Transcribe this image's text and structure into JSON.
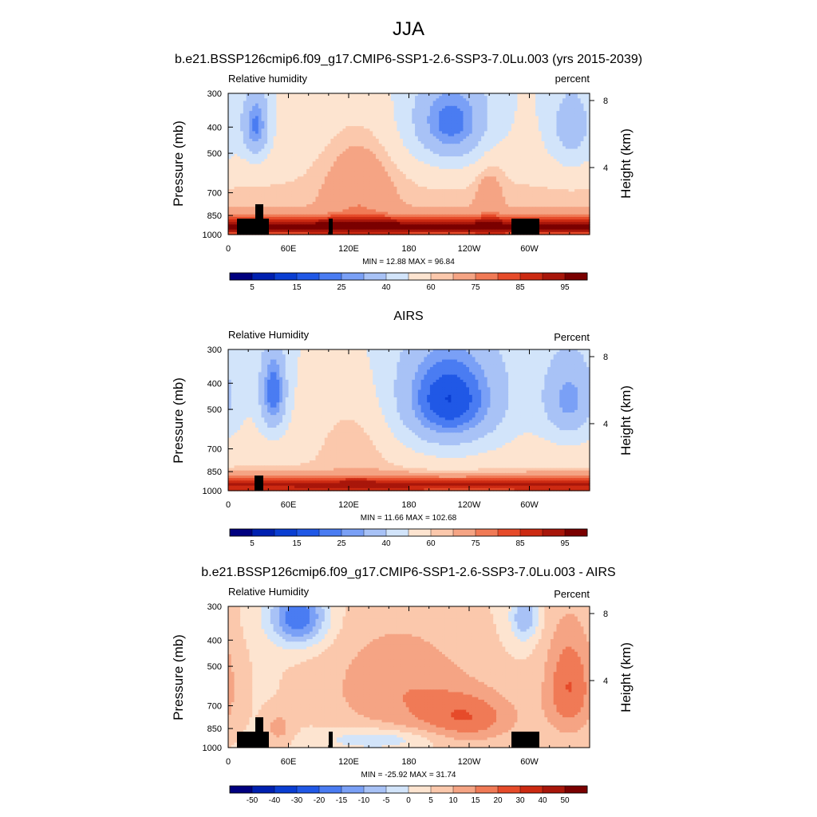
{
  "figure": {
    "title": "JJA"
  },
  "chart_data": [
    {
      "type": "heatmap",
      "title": "b.e21.BSSP126cmip6.f09_g17.CMIP6-SSP1-2.6-SSP3-7.0Lu.003 (yrs 2015-2039)",
      "left_label": "Relative humidity",
      "right_label": "percent",
      "ylabel": "Pressure (mb)",
      "ylabel_right": "Height (km)",
      "x_ticks": [
        "0",
        "60E",
        "120E",
        "180",
        "120W",
        "60W"
      ],
      "x_tick_values": [
        0,
        60,
        120,
        180,
        240,
        300
      ],
      "xlim": [
        0,
        360
      ],
      "y_ticks": [
        "300",
        "400",
        "500",
        "700",
        "850",
        "1000"
      ],
      "y_tick_values": [
        300,
        400,
        500,
        700,
        850,
        1000
      ],
      "ylim": [
        1000,
        300
      ],
      "height_ticks": [
        "8",
        "4"
      ],
      "height_tick_values": [
        8,
        4
      ],
      "stats": "MIN = 12.88  MAX = 96.84",
      "min": 12.88,
      "max": 96.84,
      "colorbar_labels": [
        "5",
        "15",
        "25",
        "40",
        "60",
        "75",
        "85",
        "95"
      ],
      "levels": [
        5,
        10,
        15,
        20,
        25,
        30,
        40,
        50,
        60,
        65,
        75,
        80,
        85,
        90,
        95
      ],
      "palette": "rh",
      "field": "model",
      "terrain": "full"
    },
    {
      "type": "heatmap",
      "title": "AIRS",
      "left_label": "Relative Humidity",
      "right_label": "Percent",
      "ylabel": "Pressure (mb)",
      "ylabel_right": "Height (km)",
      "x_ticks": [
        "0",
        "60E",
        "120E",
        "180",
        "120W",
        "60W"
      ],
      "x_tick_values": [
        0,
        60,
        120,
        180,
        240,
        300
      ],
      "xlim": [
        0,
        360
      ],
      "y_ticks": [
        "300",
        "400",
        "500",
        "700",
        "850",
        "1000"
      ],
      "y_tick_values": [
        300,
        400,
        500,
        700,
        850,
        1000
      ],
      "ylim": [
        1000,
        300
      ],
      "height_ticks": [
        "8",
        "4"
      ],
      "height_tick_values": [
        8,
        4
      ],
      "stats": "MIN = 11.66  MAX = 102.68",
      "min": 11.66,
      "max": 102.68,
      "colorbar_labels": [
        "5",
        "15",
        "25",
        "40",
        "60",
        "75",
        "85",
        "95"
      ],
      "levels": [
        5,
        10,
        15,
        20,
        25,
        30,
        40,
        50,
        60,
        65,
        75,
        80,
        85,
        90,
        95
      ],
      "palette": "rh",
      "field": "obs",
      "terrain": "small"
    },
    {
      "type": "heatmap",
      "title": "b.e21.BSSP126cmip6.f09_g17.CMIP6-SSP1-2.6-SSP3-7.0Lu.003 - AIRS",
      "left_label": "Relative Humidity",
      "right_label": "Percent",
      "ylabel": "Pressure (mb)",
      "ylabel_right": "Height (km)",
      "x_ticks": [
        "0",
        "60E",
        "120E",
        "180",
        "120W",
        "60W"
      ],
      "x_tick_values": [
        0,
        60,
        120,
        180,
        240,
        300
      ],
      "xlim": [
        0,
        360
      ],
      "y_ticks": [
        "300",
        "400",
        "500",
        "700",
        "850",
        "1000"
      ],
      "y_tick_values": [
        300,
        400,
        500,
        700,
        850,
        1000
      ],
      "ylim": [
        1000,
        300
      ],
      "height_ticks": [
        "8",
        "4"
      ],
      "height_tick_values": [
        8,
        4
      ],
      "stats": "MIN = -25.92  MAX = 31.74",
      "min": -25.92,
      "max": 31.74,
      "colorbar_labels": [
        "-50",
        "-40",
        "-30",
        "-20",
        "-15",
        "-10",
        "-5",
        "0",
        "5",
        "10",
        "15",
        "20",
        "30",
        "40",
        "50"
      ],
      "levels": [
        -50,
        -40,
        -30,
        -20,
        -15,
        -10,
        -5,
        0,
        5,
        10,
        15,
        20,
        30,
        40,
        50
      ],
      "palette": "diff",
      "field": "diff",
      "terrain": "full"
    }
  ],
  "colors": {
    "palette": [
      "#00007f",
      "#0020b0",
      "#0a3ed2",
      "#2058e6",
      "#4a7cf2",
      "#7aa0f6",
      "#a8c2f6",
      "#d2e4fa",
      "#fde4d0",
      "#fbc8ac",
      "#f5a484",
      "#f07a56",
      "#e64b2a",
      "#cc2a12",
      "#a8160a",
      "#7a0000"
    ],
    "terrain": "#000000"
  }
}
